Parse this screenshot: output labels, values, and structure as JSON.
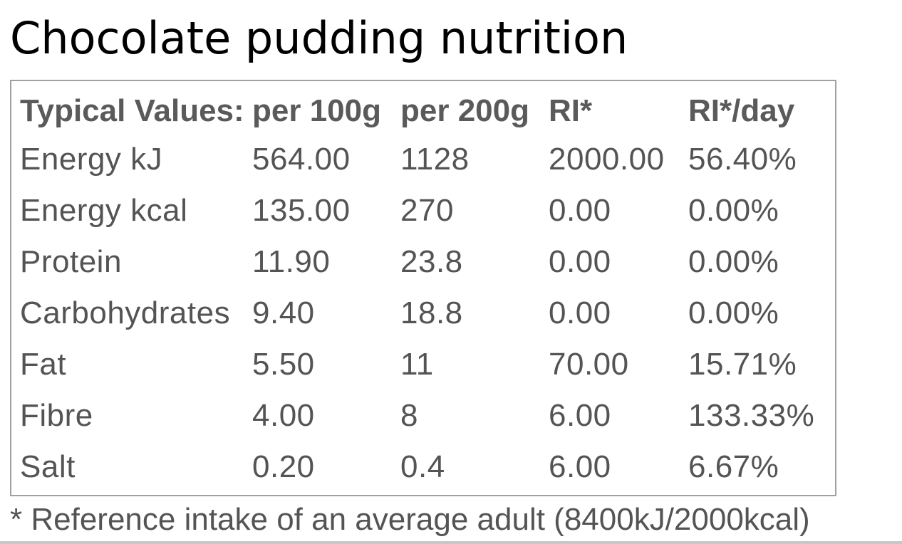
{
  "title": "Chocolate pudding nutrition",
  "table": {
    "headers": [
      "Typical Values:",
      "per 100g",
      "per 200g",
      "RI*",
      "RI*/day"
    ],
    "rows": [
      [
        "Energy kJ",
        "564.00",
        "1128",
        "2000.00",
        "56.40%"
      ],
      [
        "Energy kcal",
        "135.00",
        "270",
        "0.00",
        "0.00%"
      ],
      [
        "Protein",
        "11.90",
        "23.8",
        "0.00",
        "0.00%"
      ],
      [
        "Carbohydrates",
        "9.40",
        "18.8",
        "0.00",
        "0.00%"
      ],
      [
        "Fat",
        "5.50",
        "11",
        "70.00",
        "15.71%"
      ],
      [
        "Fibre",
        "4.00",
        "8",
        "6.00",
        "133.33%"
      ],
      [
        "Salt",
        "0.20",
        "0.4",
        "6.00",
        "6.67%"
      ]
    ]
  },
  "footnote": "* Reference intake of an average adult (8400kJ/2000kcal)",
  "colors": {
    "title_text": "#000000",
    "table_text": "#545454",
    "border": "#a0a0a0"
  }
}
